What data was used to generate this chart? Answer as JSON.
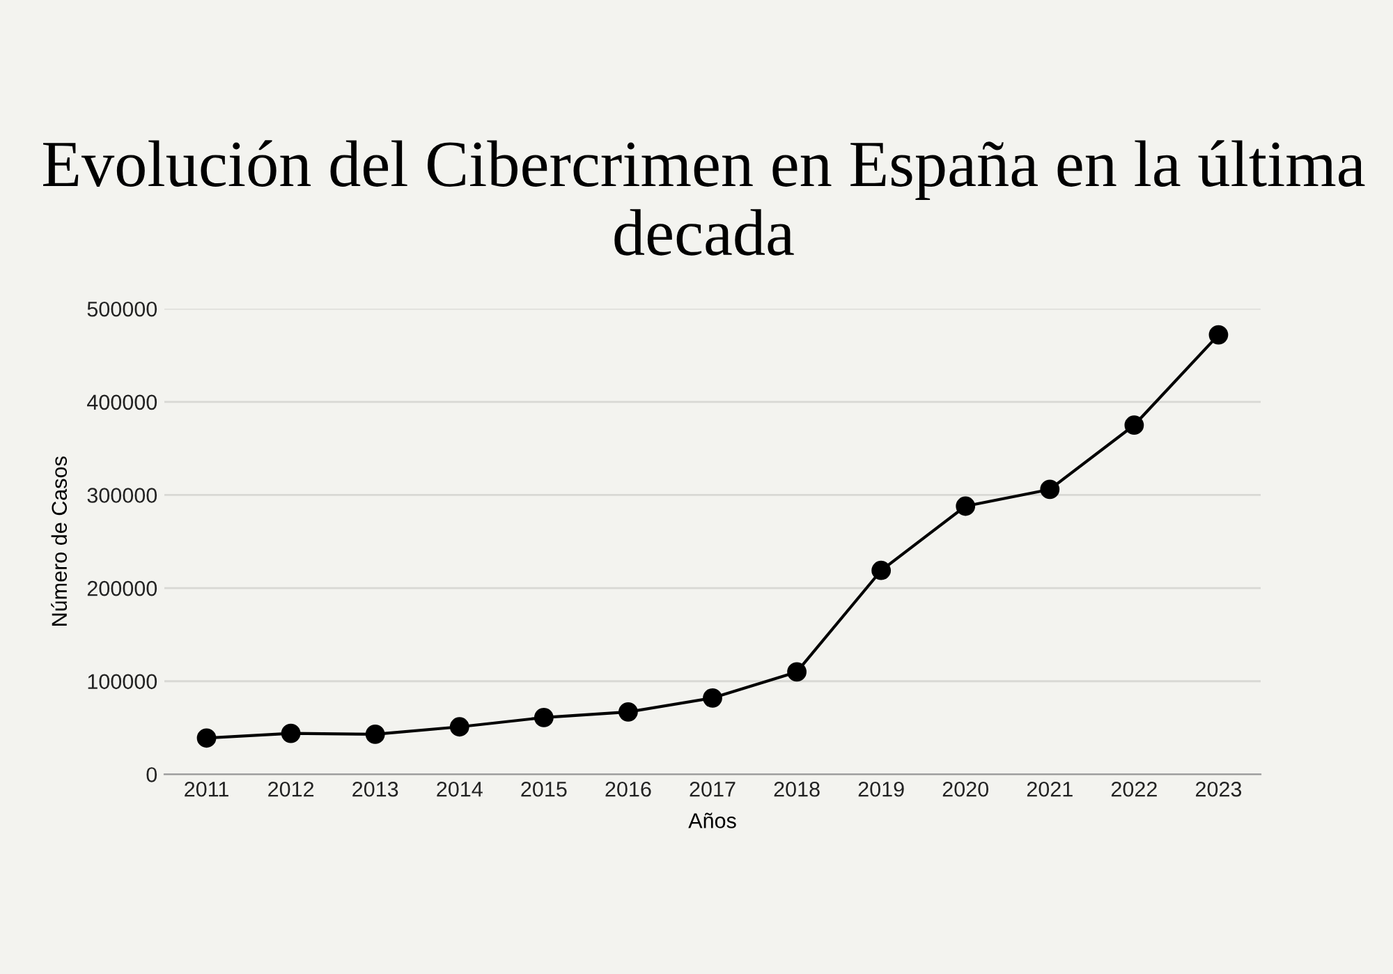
{
  "chart_data": {
    "type": "line",
    "title": "Evolución del Cibercrimen en España en la última decada",
    "xlabel": "Años",
    "ylabel": "Número de Casos",
    "categories": [
      "2011",
      "2012",
      "2013",
      "2014",
      "2015",
      "2016",
      "2017",
      "2018",
      "2019",
      "2020",
      "2021",
      "2022",
      "2023"
    ],
    "series": [
      {
        "color": "#000000",
        "values": [
          39000,
          44000,
          43000,
          51000,
          61000,
          67000,
          82000,
          110000,
          219000,
          288000,
          306000,
          375000,
          472000
        ]
      }
    ],
    "ylim": [
      0,
      500000
    ],
    "yticks": [
      0,
      100000,
      200000,
      300000,
      400000,
      500000
    ],
    "grid": "y",
    "marker": "circle",
    "line_style": "solid"
  }
}
